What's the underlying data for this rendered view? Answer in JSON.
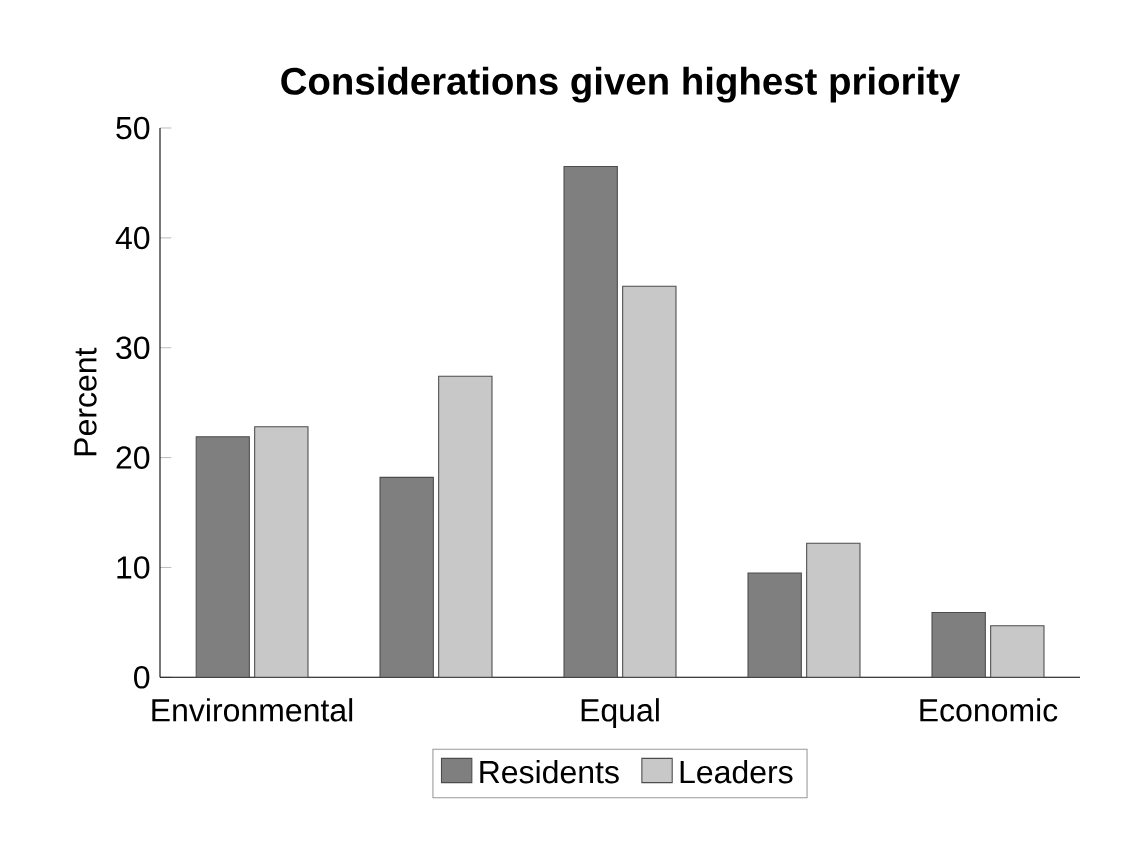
{
  "chart_data": {
    "type": "bar",
    "title": "Considerations given highest priority",
    "ylabel": "Percent",
    "categories": [
      "Environmental",
      null,
      "Equal",
      null,
      "Economic"
    ],
    "series": [
      {
        "name": "Residents",
        "color": "#7f7f7f",
        "values": [
          21.9,
          18.2,
          46.5,
          9.5,
          5.9
        ]
      },
      {
        "name": "Leaders",
        "color": "#c8c8c8",
        "values": [
          22.8,
          27.4,
          35.6,
          12.2,
          4.7
        ]
      }
    ],
    "ylim": [
      0,
      50
    ],
    "yticks": [
      0,
      10,
      20,
      30,
      40,
      50
    ],
    "legend": "bottom"
  }
}
